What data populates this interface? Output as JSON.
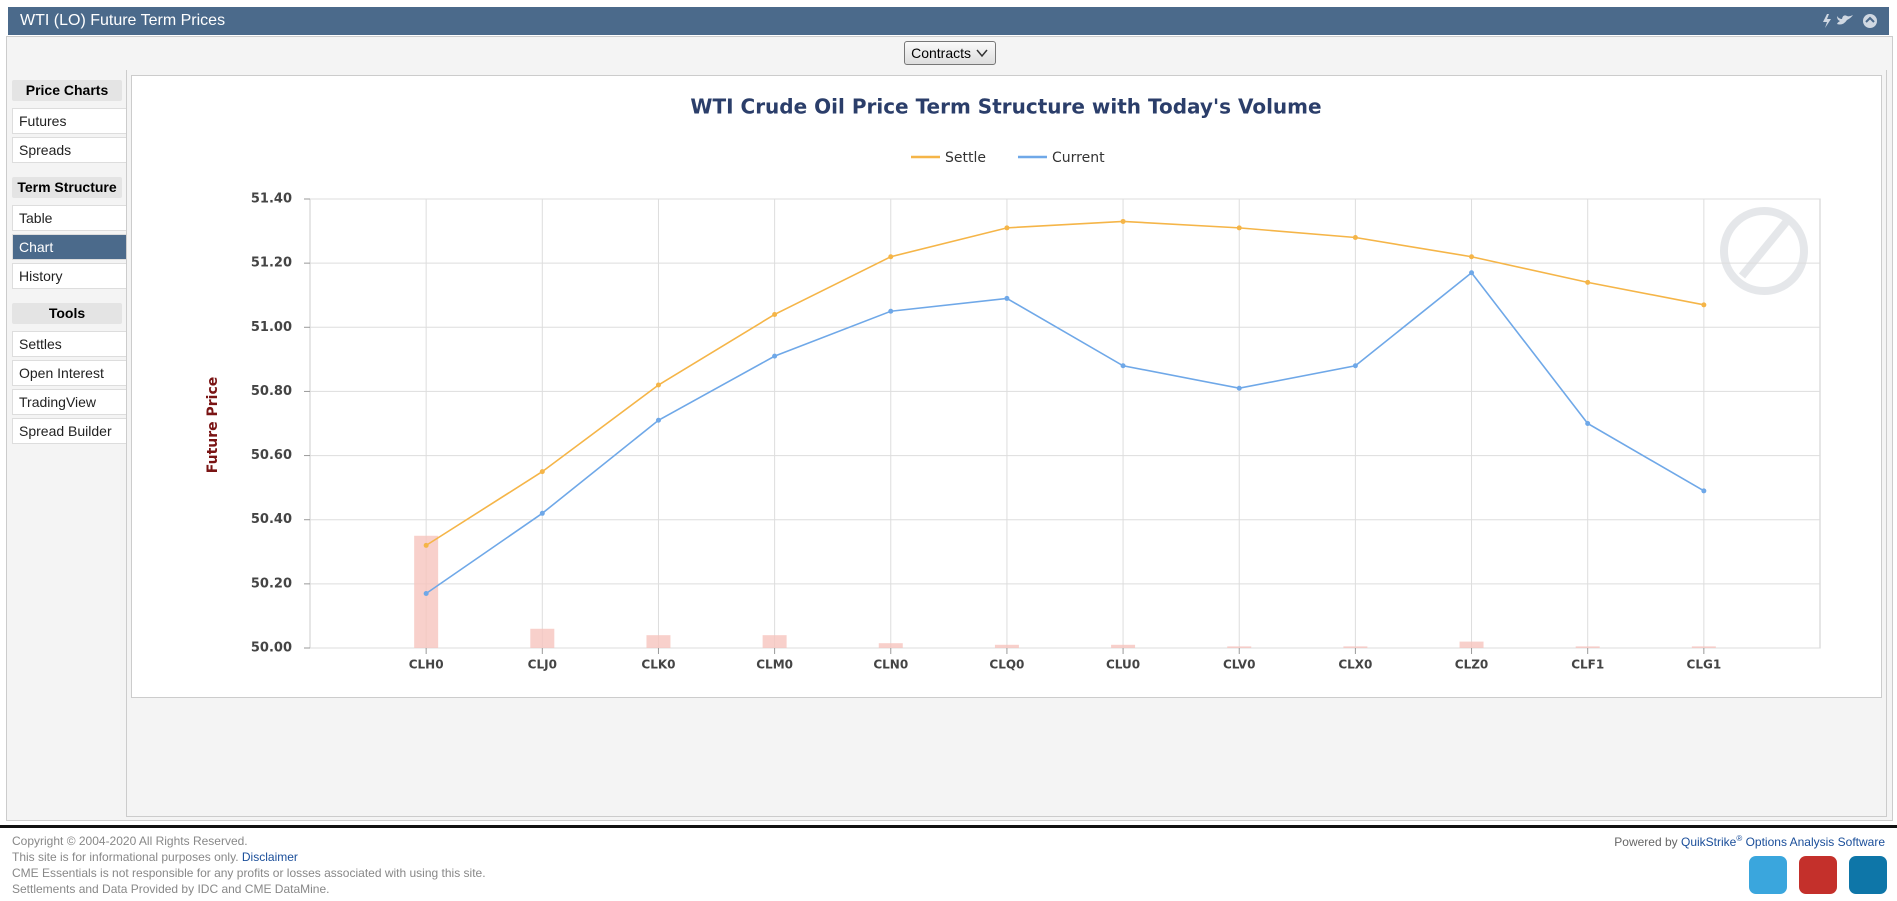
{
  "header": {
    "title": "WTI (LO) Future Term Prices"
  },
  "toolbar": {
    "button": "Contracts"
  },
  "nav": [
    {
      "heading": "Price Charts",
      "items": [
        "Futures",
        "Spreads"
      ]
    },
    {
      "heading": "Term Structure",
      "items": [
        "Table",
        "Chart",
        "History"
      ],
      "selected": 1
    },
    {
      "heading": "Tools",
      "items": [
        "Settles",
        "Open Interest",
        "TradingView",
        "Spread Builder"
      ]
    }
  ],
  "chart_data": {
    "type": "line",
    "title": "WTI Crude Oil Price Term Structure with Today's Volume",
    "y_label": "Future Price",
    "categories": [
      "CLH0",
      "CLJ0",
      "CLK0",
      "CLM0",
      "CLN0",
      "CLQ0",
      "CLU0",
      "CLV0",
      "CLX0",
      "CLZ0",
      "CLF1",
      "CLG1"
    ],
    "series": [
      {
        "name": "Settle",
        "color": "#f5b548",
        "values": [
          50.32,
          50.55,
          50.82,
          51.04,
          51.22,
          51.31,
          51.33,
          51.31,
          51.28,
          51.22,
          51.14,
          51.07
        ]
      },
      {
        "name": "Current",
        "color": "#6fa8e8",
        "values": [
          50.17,
          50.42,
          50.71,
          50.91,
          51.05,
          51.09,
          50.88,
          50.81,
          50.88,
          51.17,
          50.7,
          50.49
        ]
      }
    ],
    "volume_bars": {
      "color": "#f6c4be",
      "values": [
        0.35,
        0.06,
        0.04,
        0.04,
        0.015,
        0.01,
        0.01,
        0.005,
        0.005,
        0.02,
        0.005,
        0.005
      ]
    },
    "ylim": [
      50,
      51.4
    ],
    "yticks": [
      {
        "value": 50,
        "label": "50.00"
      },
      {
        "value": 50.2,
        "label": "50.20"
      },
      {
        "value": 50.4,
        "label": "50.40"
      },
      {
        "value": 50.6,
        "label": "50.60"
      },
      {
        "value": 50.8,
        "label": "50.80"
      },
      {
        "value": 51,
        "label": "51.00"
      },
      {
        "value": 51.2,
        "label": "51.20"
      },
      {
        "value": 51.4,
        "label": "51.40"
      }
    ],
    "grid": true,
    "legend": "top"
  },
  "footer": {
    "copyright": "Copyright © 2004-2020 All Rights Reserved.",
    "info": "This site is for informational purposes only.",
    "disclaimer": "Disclaimer",
    "responsibility": "CME Essentials is not responsible for any profits or losses associated with using this site.",
    "settlements": "Settlements and Data Provided by IDC and CME DataMine.",
    "powered_by": "Powered by",
    "brand": "QuikStrike",
    "brand_mark": "®",
    "brand_suffix": "Options Analysis Software"
  }
}
